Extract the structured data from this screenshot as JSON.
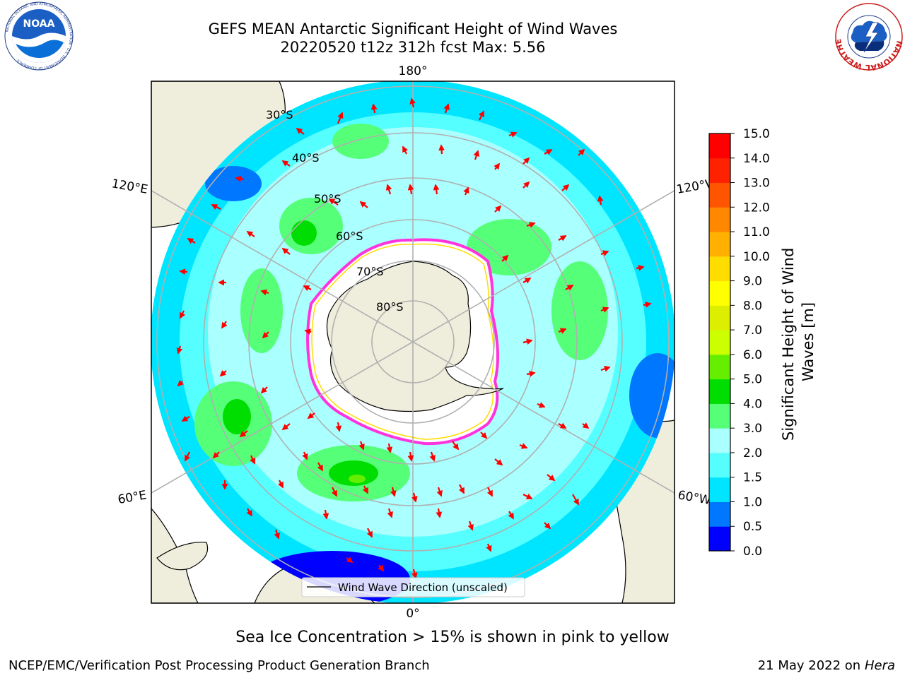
{
  "header": {
    "title_line1": "GEFS MEAN Antarctic Significant Height of Wind Waves",
    "title_line2": "20220520 t12z 312h fcst   Max: 5.56"
  },
  "logos": {
    "left": "NOAA",
    "left_ring_text": "NATIONAL OCEANIC AND ATMOSPHERIC ADMINISTRATION · U.S. DEPARTMENT OF COMMERCE",
    "right_ring_text": "NATIONAL WEATHER SERVICE"
  },
  "map": {
    "projection": "south-polar-stereographic",
    "lon_labels": {
      "top": "180°",
      "bottom": "0°",
      "upper_left": "120°E",
      "lower_left": "60°E",
      "upper_right": "120°W",
      "lower_right": "60°W"
    },
    "lat_labels": [
      "30°S",
      "40°S",
      "50°S",
      "60°S",
      "70°S",
      "80°S"
    ],
    "colors": {
      "land": "#efeedc",
      "ice": "#ffffff",
      "ice_edge": "#ff33dd",
      "arrow": "#ff0000",
      "grid": "#b0b0b0"
    },
    "legend": {
      "label": "Wind Wave Direction (unscaled)",
      "placement": "lower-center"
    }
  },
  "colorbar": {
    "label": "Significant Height of Wind Waves [m]",
    "ticks": [
      "0.0",
      "0.5",
      "1.0",
      "1.5",
      "2.0",
      "3.0",
      "4.0",
      "5.0",
      "6.0",
      "7.0",
      "8.0",
      "9.0",
      "10.0",
      "11.0",
      "12.0",
      "13.0",
      "14.0",
      "15.0"
    ],
    "colors": [
      "#0000ff",
      "#0077ff",
      "#00e5ff",
      "#55ffff",
      "#aaffff",
      "#55ff77",
      "#00dd00",
      "#66ee00",
      "#ccff00",
      "#ddee00",
      "#ffff00",
      "#ffdd00",
      "#ffb000",
      "#ff8800",
      "#ff5500",
      "#ff2200",
      "#ff0000"
    ]
  },
  "footer": {
    "note": "Sea Ice Concentration > 15% is shown in pink to yellow",
    "credit": "NCEP/EMC/Verification Post Processing Product Generation Branch",
    "date": "21 May 2022 on",
    "host": "Hera"
  }
}
